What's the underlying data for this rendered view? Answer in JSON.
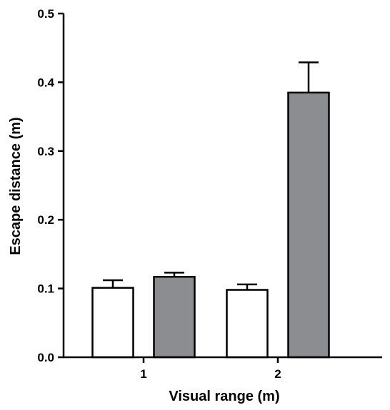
{
  "chart_data": {
    "type": "bar",
    "xlabel": "Visual range (m)",
    "ylabel": "Escape distance (m)",
    "ylim": [
      0,
      0.5
    ],
    "yticks": [
      0.0,
      0.1,
      0.2,
      0.3,
      0.4,
      0.5
    ],
    "ytick_labels": [
      "0.0",
      "0.1",
      "0.2",
      "0.3",
      "0.4",
      "0.5"
    ],
    "categories": [
      "1",
      "2"
    ],
    "series": [
      {
        "color": "#ffffff",
        "values": [
          0.101,
          0.098
        ],
        "errors": [
          0.011,
          0.008
        ]
      },
      {
        "color": "#8c8d91",
        "values": [
          0.117,
          0.385
        ],
        "errors": [
          0.006,
          0.044
        ]
      }
    ],
    "grid": false,
    "legend": "none"
  }
}
